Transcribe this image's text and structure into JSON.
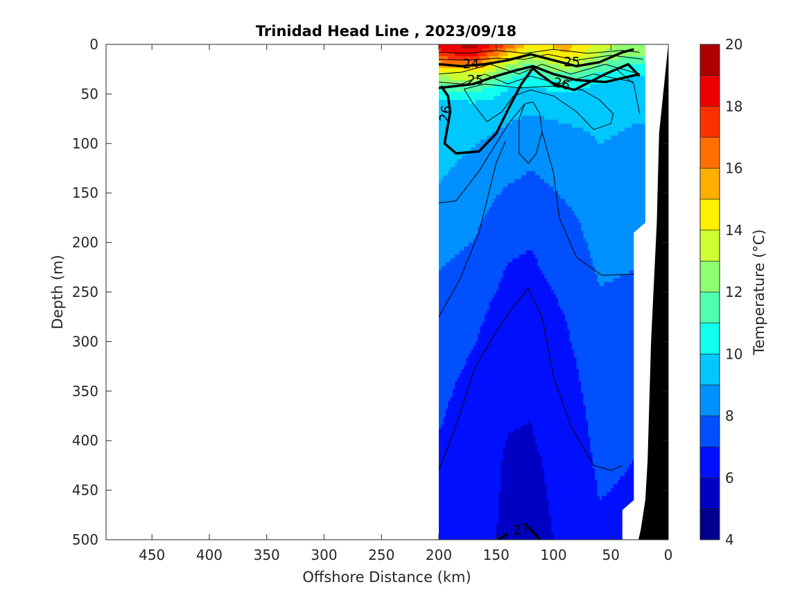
{
  "chart_data": {
    "type": "heatmap",
    "title": "Trinidad Head Line , 2023/09/18",
    "xlabel": "Offshore Distance (km)",
    "ylabel": "Depth (m)",
    "xlim": [
      490,
      0
    ],
    "ylim": [
      0,
      500
    ],
    "x_reversed": true,
    "y_reversed": true,
    "x_ticks": [
      450,
      400,
      350,
      300,
      250,
      200,
      150,
      100,
      50,
      0
    ],
    "y_ticks": [
      0,
      50,
      100,
      150,
      200,
      250,
      300,
      350,
      400,
      450,
      500
    ],
    "grid": false,
    "colorbar": {
      "label": "Temperature (°C)",
      "range": [
        4,
        20
      ],
      "step": 1,
      "ticks": [
        4,
        6,
        8,
        10,
        12,
        14,
        16,
        18,
        20
      ],
      "colors": [
        "#00008f",
        "#0000c4",
        "#0010ff",
        "#0050ff",
        "#0090ff",
        "#00c8ff",
        "#10ffef",
        "#50ffaf",
        "#90ff70",
        "#cfff30",
        "#ffef00",
        "#ffaf00",
        "#ff7000",
        "#ff3000",
        "#ef0000",
        "#af0000"
      ]
    },
    "section_x_range": [
      200,
      20
    ],
    "temperature_profiles": [
      {
        "x": 200,
        "depths": [
          0,
          10,
          20,
          30,
          45,
          60,
          80,
          120,
          180,
          260,
          340,
          420,
          500
        ],
        "values": [
          18.5,
          17.5,
          15.5,
          13.5,
          11,
          9.6,
          9.4,
          9.2,
          8.6,
          7.6,
          7.2,
          6.9,
          6.8
        ]
      },
      {
        "x": 170,
        "depths": [
          0,
          10,
          20,
          30,
          45,
          60,
          80,
          120,
          180,
          260,
          340,
          420,
          500
        ],
        "values": [
          19.5,
          18.5,
          16.5,
          14,
          11.5,
          9.8,
          9.3,
          8.8,
          8.2,
          7.3,
          6.8,
          6.5,
          6.4
        ]
      },
      {
        "x": 140,
        "depths": [
          0,
          10,
          20,
          30,
          45,
          60,
          80,
          120,
          180,
          260,
          340,
          420,
          500
        ],
        "values": [
          17,
          15,
          13,
          11.5,
          10,
          9.4,
          9,
          8.4,
          7.3,
          6.7,
          6.2,
          5.9,
          5.8
        ]
      },
      {
        "x": 120,
        "depths": [
          0,
          10,
          20,
          30,
          45,
          60,
          80,
          120,
          180,
          260,
          340,
          420,
          500
        ],
        "values": [
          14.5,
          13.5,
          12,
          10.8,
          9.8,
          9.2,
          8.8,
          8.1,
          7.2,
          6.6,
          6.1,
          5.9,
          5.8
        ]
      },
      {
        "x": 90,
        "depths": [
          0,
          10,
          20,
          30,
          45,
          60,
          80,
          120,
          180,
          260,
          340,
          420,
          500
        ],
        "values": [
          15.5,
          15,
          13.5,
          12,
          10.3,
          9.4,
          9,
          8.5,
          7.7,
          7.1,
          6.6,
          6.2,
          6.1
        ]
      },
      {
        "x": 60,
        "depths": [
          0,
          10,
          20,
          30,
          45,
          60,
          80,
          120,
          180,
          260,
          340,
          420,
          500
        ],
        "values": [
          13.5,
          13,
          12,
          10.8,
          9.5,
          9.2,
          9.1,
          8.9,
          8.4,
          7.9,
          7.5,
          7.2,
          6.8
        ]
      },
      {
        "x": 30,
        "depths": [
          0,
          10,
          20,
          30,
          45,
          60,
          80,
          120,
          180,
          260,
          340,
          420,
          500
        ],
        "values": [
          12.5,
          12,
          11,
          10,
          9.3,
          9.1,
          9,
          8.8,
          8.3,
          7.8,
          7.4,
          7,
          6.7
        ]
      }
    ],
    "bathymetry": {
      "x": [
        0,
        2,
        5,
        8,
        10,
        15,
        18,
        20,
        24,
        26
      ],
      "depth": [
        0,
        20,
        50,
        90,
        180,
        300,
        420,
        460,
        490,
        500
      ]
    },
    "density_contour_labels": [
      "24",
      "25",
      "25",
      "26",
      "26",
      "27"
    ]
  }
}
